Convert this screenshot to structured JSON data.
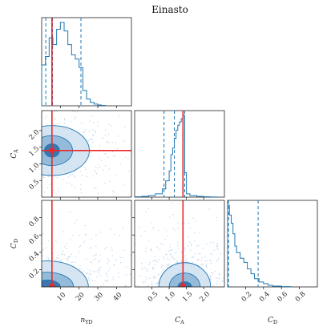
{
  "chart_data": {
    "type": "corner",
    "title": "Einasto",
    "parameters": [
      {
        "id": "nYD",
        "label": "n",
        "label_sub": "YD",
        "range": [
          0,
          48
        ],
        "ticks": [
          10,
          20,
          30,
          40
        ],
        "tick_labels": [
          "10",
          "20",
          "30",
          "40"
        ],
        "truth": 5.5,
        "quantiles": [
          2.2,
          5.8,
          21.0
        ]
      },
      {
        "id": "CA",
        "label": "C",
        "label_sub": "A",
        "range": [
          0,
          2.6
        ],
        "ticks": [
          0.5,
          1.0,
          1.5,
          2.0
        ],
        "tick_labels": [
          "0.5",
          "1.0",
          "1.5",
          "2.0"
        ],
        "truth": 1.4,
        "quantiles": [
          0.85,
          1.15,
          1.45
        ]
      },
      {
        "id": "CD",
        "label": "C",
        "label_sub": "D",
        "range": [
          0,
          1.0
        ],
        "ticks": [
          0.2,
          0.4,
          0.6,
          0.8
        ],
        "tick_labels": [
          "0.2",
          "0.4",
          "0.6",
          "0.8"
        ],
        "truth": null,
        "quantiles": [
          0.0,
          0.01,
          0.34
        ]
      }
    ],
    "histograms": {
      "nYD": {
        "bin_edges": [
          0,
          2,
          4,
          6,
          8,
          10,
          12,
          14,
          16,
          18,
          20,
          22,
          24,
          26,
          28,
          30,
          32,
          34
        ],
        "counts": [
          0.48,
          0.58,
          0.8,
          0.72,
          0.9,
          0.98,
          0.88,
          0.72,
          0.6,
          0.55,
          0.45,
          0.18,
          0.08,
          0.04,
          0.02,
          0.01,
          0.005
        ]
      },
      "CA": {
        "bin_edges": [
          0.0,
          0.2,
          0.4,
          0.6,
          0.8,
          0.9,
          1.0,
          1.05,
          1.1,
          1.15,
          1.2,
          1.25,
          1.3,
          1.35,
          1.4,
          1.45,
          1.5,
          1.6,
          1.8,
          2.0,
          2.2,
          2.4
        ],
        "counts": [
          0.005,
          0.01,
          0.02,
          0.04,
          0.1,
          0.2,
          0.32,
          0.52,
          0.6,
          0.72,
          0.82,
          0.88,
          0.92,
          0.96,
          1.0,
          0.3,
          0.04,
          0.02,
          0.01,
          0.005,
          0.002
        ]
      },
      "CD": {
        "bin_edges": [
          0.0,
          0.02,
          0.04,
          0.06,
          0.08,
          0.1,
          0.14,
          0.18,
          0.22,
          0.26,
          0.3,
          0.35,
          0.4,
          0.45,
          0.5,
          0.6,
          0.7
        ],
        "counts": [
          1.0,
          0.88,
          0.78,
          0.65,
          0.5,
          0.42,
          0.35,
          0.3,
          0.22,
          0.16,
          0.1,
          0.06,
          0.04,
          0.02,
          0.01,
          0.004
        ]
      }
    },
    "contours_2d": [
      {
        "x": "nYD",
        "y": "CA",
        "center": [
          5.5,
          1.4
        ],
        "radii": [
          [
            4,
            0.2
          ],
          [
            11,
            0.45
          ],
          [
            20,
            0.75
          ]
        ]
      },
      {
        "x": "nYD",
        "y": "CD",
        "center": [
          3.0,
          0.0
        ],
        "radii": [
          [
            7,
            0.08
          ],
          [
            14,
            0.17
          ],
          [
            22,
            0.3
          ]
        ]
      },
      {
        "x": "CA",
        "y": "CD",
        "center": [
          1.45,
          0.0
        ],
        "radii": [
          [
            0.2,
            0.06
          ],
          [
            0.45,
            0.16
          ],
          [
            0.75,
            0.28
          ]
        ]
      }
    ],
    "colors": {
      "line": "#1f77b4",
      "fill_light": "#cfe0f0",
      "fill_mid": "#8ab4d6",
      "fill_dark": "#2b6ba6",
      "truth": "#e8282b",
      "scatter": "#8fb7df"
    }
  }
}
